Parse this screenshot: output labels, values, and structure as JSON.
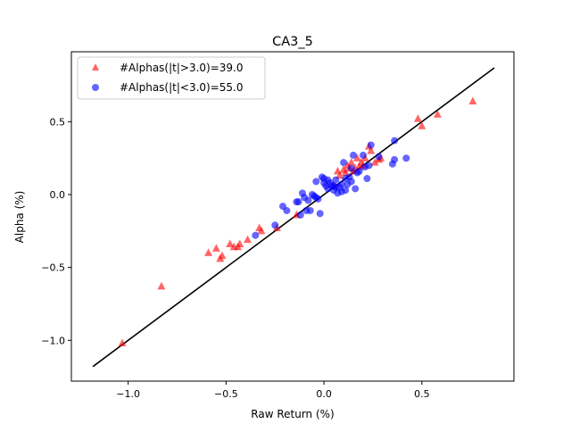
{
  "chart_data": {
    "type": "scatter",
    "title": "CA3_5",
    "xlabel": "Raw Return (%)",
    "ylabel": "Alpha (%)",
    "xlim": [
      -1.29,
      0.97
    ],
    "ylim": [
      -1.28,
      0.98
    ],
    "xticks": [
      -1.0,
      -0.5,
      0.0,
      0.5
    ],
    "xtick_labels": [
      "−1.0",
      "−0.5",
      "0.0",
      "0.5"
    ],
    "yticks": [
      -1.0,
      -0.5,
      0.0,
      0.5
    ],
    "ytick_labels": [
      "−1.0",
      "−0.5",
      "0.0",
      "0.5"
    ],
    "grid": false,
    "legend_position": "upper-left",
    "fit_line": {
      "x": [
        -1.18,
        0.87
      ],
      "y": [
        -1.18,
        0.87
      ],
      "color": "#000000"
    },
    "series": [
      {
        "name": "#Alphas(|t|>3.0)=39.0",
        "marker": "triangle",
        "color": "#ff0000",
        "points": [
          [
            -1.03,
            -1.02
          ],
          [
            -0.83,
            -0.63
          ],
          [
            -0.59,
            -0.4
          ],
          [
            -0.55,
            -0.37
          ],
          [
            -0.53,
            -0.44
          ],
          [
            -0.52,
            -0.42
          ],
          [
            -0.48,
            -0.34
          ],
          [
            -0.46,
            -0.36
          ],
          [
            -0.44,
            -0.36
          ],
          [
            -0.43,
            -0.34
          ],
          [
            -0.39,
            -0.31
          ],
          [
            -0.32,
            -0.25
          ],
          [
            -0.24,
            -0.23
          ],
          [
            -0.14,
            -0.14
          ],
          [
            0.07,
            0.16
          ],
          [
            0.1,
            0.17
          ],
          [
            0.11,
            0.15
          ],
          [
            0.12,
            0.2
          ],
          [
            0.14,
            0.22
          ],
          [
            0.15,
            0.16
          ],
          [
            0.16,
            0.18
          ],
          [
            0.17,
            0.25
          ],
          [
            0.19,
            0.22
          ],
          [
            0.21,
            0.25
          ],
          [
            0.23,
            0.33
          ],
          [
            0.26,
            0.22
          ],
          [
            0.29,
            0.25
          ],
          [
            0.28,
            0.24
          ],
          [
            0.48,
            0.52
          ],
          [
            0.5,
            0.47
          ],
          [
            0.58,
            0.55
          ],
          [
            0.76,
            0.64
          ],
          [
            0.05,
            0.06
          ],
          [
            0.13,
            0.18
          ],
          [
            0.2,
            0.2
          ],
          [
            0.24,
            0.3
          ],
          [
            0.08,
            0.13
          ],
          [
            0.18,
            0.19
          ],
          [
            -0.33,
            -0.23
          ]
        ]
      },
      {
        "name": "#Alphas(|t|<3.0)=55.0",
        "marker": "circle",
        "color": "#0000ff",
        "points": [
          [
            -0.35,
            -0.28
          ],
          [
            -0.25,
            -0.21
          ],
          [
            -0.21,
            -0.08
          ],
          [
            -0.19,
            -0.11
          ],
          [
            -0.14,
            -0.05
          ],
          [
            -0.13,
            -0.05
          ],
          [
            -0.12,
            -0.14
          ],
          [
            -0.11,
            0.01
          ],
          [
            -0.1,
            -0.02
          ],
          [
            -0.09,
            -0.11
          ],
          [
            -0.08,
            -0.04
          ],
          [
            -0.07,
            -0.11
          ],
          [
            -0.06,
            0.0
          ],
          [
            -0.05,
            -0.01
          ],
          [
            -0.04,
            0.09
          ],
          [
            -0.03,
            -0.03
          ],
          [
            -0.02,
            -0.13
          ],
          [
            -0.01,
            0.12
          ],
          [
            0.0,
            0.11
          ],
          [
            0.01,
            0.06
          ],
          [
            0.02,
            0.04
          ],
          [
            0.03,
            0.08
          ],
          [
            0.04,
            0.06
          ],
          [
            0.05,
            0.03
          ],
          [
            0.06,
            0.1
          ],
          [
            0.07,
            0.01
          ],
          [
            0.08,
            0.05
          ],
          [
            0.09,
            0.07
          ],
          [
            0.1,
            0.22
          ],
          [
            0.11,
            0.03
          ],
          [
            0.12,
            0.07
          ],
          [
            0.13,
            0.12
          ],
          [
            0.14,
            0.18
          ],
          [
            0.15,
            0.27
          ],
          [
            0.16,
            0.04
          ],
          [
            0.17,
            0.15
          ],
          [
            0.2,
            0.27
          ],
          [
            0.21,
            0.19
          ],
          [
            0.22,
            0.11
          ],
          [
            0.23,
            0.2
          ],
          [
            0.24,
            0.34
          ],
          [
            0.28,
            0.26
          ],
          [
            0.35,
            0.21
          ],
          [
            0.36,
            0.24
          ],
          [
            0.36,
            0.37
          ],
          [
            0.42,
            0.25
          ],
          [
            0.0,
            0.08
          ],
          [
            0.02,
            0.1
          ],
          [
            0.05,
            0.06
          ],
          [
            0.09,
            0.02
          ],
          [
            0.11,
            0.11
          ],
          [
            0.14,
            0.09
          ],
          [
            -0.04,
            -0.02
          ],
          [
            0.06,
            0.05
          ],
          [
            0.18,
            0.16
          ]
        ]
      }
    ]
  }
}
